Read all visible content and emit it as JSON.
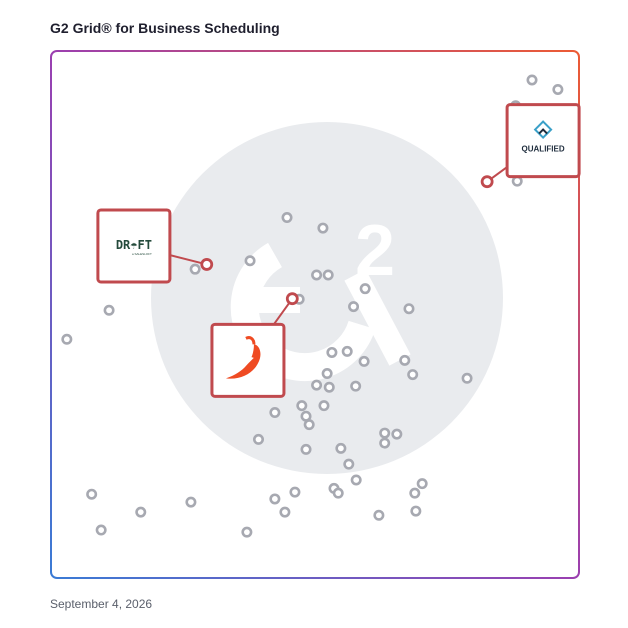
{
  "header": {
    "title": "G2 Grid® for Business Scheduling"
  },
  "footer": {
    "date": "September 4, 2026"
  },
  "colors": {
    "dot": "#a7a9b1",
    "highlight": "#c04a4e",
    "watermark": "#e9ebee",
    "frame_gradient": [
      "#3f6fd6",
      "#8a3fb0",
      "#e2583a"
    ]
  },
  "chart_data": {
    "type": "scatter",
    "title": "G2 Grid® for Business Scheduling",
    "xlim": [
      0,
      100
    ],
    "ylim": [
      0,
      100
    ],
    "grid": "quadrants",
    "points": [
      {
        "x": 91.1,
        "y": 94.5
      },
      {
        "x": 96.0,
        "y": 92.7
      },
      {
        "x": 88.0,
        "y": 89.6
      },
      {
        "x": 88.3,
        "y": 75.3
      },
      {
        "x": 44.7,
        "y": 68.4
      },
      {
        "x": 51.5,
        "y": 66.4
      },
      {
        "x": 37.7,
        "y": 60.2
      },
      {
        "x": 27.3,
        "y": 58.6
      },
      {
        "x": 50.3,
        "y": 57.5
      },
      {
        "x": 52.5,
        "y": 57.5
      },
      {
        "x": 59.5,
        "y": 54.9
      },
      {
        "x": 47.0,
        "y": 52.9
      },
      {
        "x": 57.3,
        "y": 51.5
      },
      {
        "x": 67.8,
        "y": 51.1
      },
      {
        "x": 11.0,
        "y": 50.8
      },
      {
        "x": 3.0,
        "y": 45.3
      },
      {
        "x": 53.2,
        "y": 42.8
      },
      {
        "x": 56.1,
        "y": 43.0
      },
      {
        "x": 59.3,
        "y": 41.1
      },
      {
        "x": 67.0,
        "y": 41.3
      },
      {
        "x": 68.5,
        "y": 38.6
      },
      {
        "x": 52.3,
        "y": 38.8
      },
      {
        "x": 50.3,
        "y": 36.6
      },
      {
        "x": 52.7,
        "y": 36.2
      },
      {
        "x": 57.7,
        "y": 36.4
      },
      {
        "x": 78.8,
        "y": 37.9
      },
      {
        "x": 47.5,
        "y": 32.7
      },
      {
        "x": 51.7,
        "y": 32.7
      },
      {
        "x": 42.4,
        "y": 31.4
      },
      {
        "x": 48.3,
        "y": 30.7
      },
      {
        "x": 48.9,
        "y": 29.1
      },
      {
        "x": 63.2,
        "y": 27.5
      },
      {
        "x": 65.5,
        "y": 27.3
      },
      {
        "x": 39.3,
        "y": 26.3
      },
      {
        "x": 63.2,
        "y": 25.6
      },
      {
        "x": 48.3,
        "y": 24.4
      },
      {
        "x": 54.9,
        "y": 24.6
      },
      {
        "x": 56.4,
        "y": 21.6
      },
      {
        "x": 57.8,
        "y": 18.6
      },
      {
        "x": 70.3,
        "y": 17.9
      },
      {
        "x": 53.6,
        "y": 17.0
      },
      {
        "x": 54.4,
        "y": 16.1
      },
      {
        "x": 68.9,
        "y": 16.1
      },
      {
        "x": 7.7,
        "y": 15.9
      },
      {
        "x": 46.2,
        "y": 16.3
      },
      {
        "x": 42.4,
        "y": 15.0
      },
      {
        "x": 26.5,
        "y": 14.4
      },
      {
        "x": 17.0,
        "y": 12.5
      },
      {
        "x": 44.3,
        "y": 12.5
      },
      {
        "x": 69.1,
        "y": 12.7
      },
      {
        "x": 62.1,
        "y": 11.9
      },
      {
        "x": 9.5,
        "y": 9.1
      },
      {
        "x": 37.1,
        "y": 8.7
      }
    ],
    "highlights": [
      {
        "name": "Qualified",
        "label": "QUALIFIED",
        "x": 82.6,
        "y": 75.2,
        "logo_x": 93.2,
        "logo_y": 83.0
      },
      {
        "name": "Drift",
        "label": "DR☂FT",
        "sublabel": "a SALESLOFT",
        "x": 29.5,
        "y": 59.5,
        "logo_x": 15.7,
        "logo_y": 63.0
      },
      {
        "name": "Chili Piper",
        "x": 45.7,
        "y": 53.0,
        "logo_x": 37.3,
        "logo_y": 41.3
      }
    ]
  }
}
